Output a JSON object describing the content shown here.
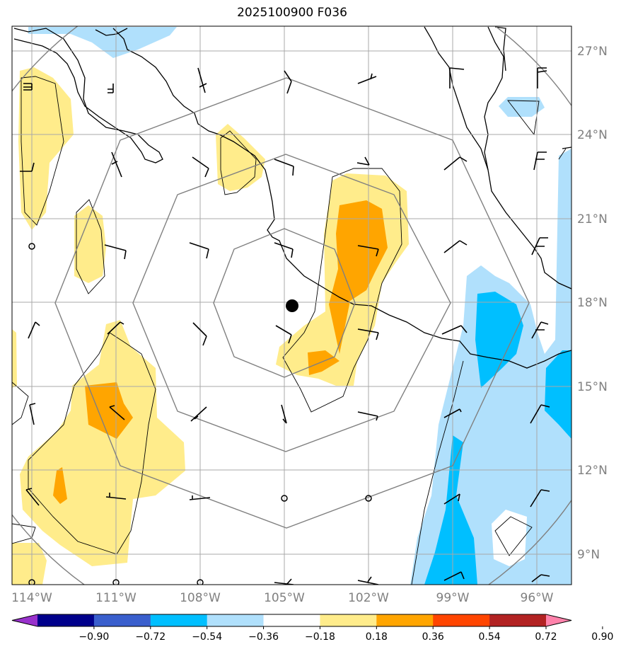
{
  "title": "2025100900 F036",
  "lat_labels": [
    "27°N",
    "24°N",
    "21°N",
    "18°N",
    "15°N",
    "12°N",
    "9°N"
  ],
  "lon_labels": [
    "114°W",
    "111°W",
    "108°W",
    "105°W",
    "102°W",
    "99°W",
    "96°W"
  ],
  "colorbar": {
    "ticks": [
      "−0.90",
      "−0.72",
      "−0.54",
      "−0.36",
      "−0.18",
      "0.18",
      "0.36",
      "0.54",
      "0.72",
      "0.90"
    ],
    "colors": [
      "#9932cc",
      "#00008b",
      "#3a5fcd",
      "#00bfff",
      "#b0e0fc",
      "#ffffff",
      "#ffec8b",
      "#ffa500",
      "#ff4500",
      "#b22222",
      "#ff82ab"
    ]
  },
  "colors": {
    "light_blue": "#b0e0fc",
    "blue": "#00bfff",
    "light_yellow": "#ffec8b",
    "orange": "#ffa500",
    "grid": "#a9a9a9",
    "tick_label": "#808080"
  },
  "center_marker": "storm-center-dot"
}
